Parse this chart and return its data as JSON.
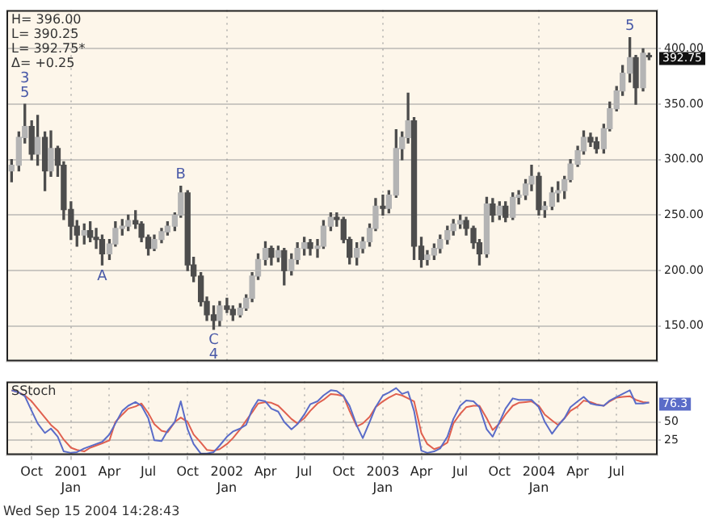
{
  "chart_data": [
    {
      "type": "candlestick",
      "color": "#4d4d4d",
      "colors": [
        "#b4b4b4",
        "#b4b4b4",
        "#b4b4b4",
        "#4d4d4d",
        "#b4b4b4",
        "#4d4d4d",
        "#b4b4b4",
        "#4d4d4d",
        "#4d4d4d",
        "#4d4d4d",
        "#4d4d4d",
        "#b4b4b4",
        "#4d4d4d",
        "#4d4d4d",
        "#4d4d4d",
        "#b4b4b4",
        "#b4b4b4",
        "#b4b4b4",
        "#b4b4b4",
        "#4d4d4d",
        "#4d4d4d",
        "#4d4d4d",
        "#b4b4b4",
        "#b4b4b4",
        "#b4b4b4",
        "#b4b4b4",
        "#b4b4b4",
        "#4d4d4d",
        "#4d4d4d",
        "#4d4d4d",
        "#4d4d4d",
        "#4d4d4d",
        "#b4b4b4",
        "#4d4d4d",
        "#4d4d4d",
        "#b4b4b4",
        "#b4b4b4",
        "#b4b4b4",
        "#b4b4b4",
        "#b4b4b4",
        "#4d4d4d",
        "#b4b4b4",
        "#4d4d4d",
        "#b4b4b4",
        "#b4b4b4",
        "#b4b4b4",
        "#4d4d4d",
        "#b4b4b4",
        "#b4b4b4",
        "#b4b4b4",
        "#4d4d4d",
        "#4d4d4d",
        "#4d4d4d",
        "#b4b4b4",
        "#b4b4b4",
        "#b4b4b4",
        "#b4b4b4",
        "#4d4d4d",
        "#b4b4b4",
        "#b4b4b4",
        "#b4b4b4",
        "#b4b4b4",
        "#4d4d4d",
        "#4d4d4d",
        "#b4b4b4",
        "#b4b4b4",
        "#b4b4b4",
        "#b4b4b4",
        "#b4b4b4",
        "#b4b4b4",
        "#4d4d4d",
        "#4d4d4d",
        "#4d4d4d",
        "#b4b4b4",
        "#4d4d4d",
        "#b4b4b4",
        "#4d4d4d",
        "#b4b4b4",
        "#b4b4b4",
        "#b4b4b4",
        "#b4b4b4",
        "#4d4d4d",
        "#b4b4b4",
        "#b4b4b4",
        "#b4b4b4",
        "#b4b4b4",
        "#b4b4b4",
        "#b4b4b4",
        "#b4b4b4",
        "#4d4d4d",
        "#4d4d4d",
        "#b4b4b4",
        "#b4b4b4",
        "#b4b4b4",
        "#b4b4b4",
        "#b4b4b4",
        "#4d4d4d",
        "#b4b4b4",
        "#4d4d4d"
      ],
      "x": [
        "2000-08-15",
        "2000-09-01",
        "2000-09-15",
        "2000-10-01",
        "2000-10-15",
        "2000-11-01",
        "2000-11-15",
        "2000-12-01",
        "2000-12-15",
        "2001-01-01",
        "2001-01-15",
        "2001-02-01",
        "2001-02-15",
        "2001-03-01",
        "2001-03-15",
        "2001-04-01",
        "2001-04-15",
        "2001-05-01",
        "2001-05-15",
        "2001-06-01",
        "2001-06-15",
        "2001-07-01",
        "2001-07-15",
        "2001-08-01",
        "2001-08-15",
        "2001-09-01",
        "2001-09-15",
        "2001-10-01",
        "2001-10-15",
        "2001-11-01",
        "2001-11-15",
        "2001-12-01",
        "2001-12-15",
        "2002-01-01",
        "2002-01-15",
        "2002-02-01",
        "2002-02-15",
        "2002-03-01",
        "2002-03-15",
        "2002-04-01",
        "2002-04-15",
        "2002-05-01",
        "2002-05-15",
        "2002-06-01",
        "2002-06-15",
        "2002-07-01",
        "2002-07-15",
        "2002-08-01",
        "2002-08-15",
        "2002-09-01",
        "2002-09-15",
        "2002-10-01",
        "2002-10-15",
        "2002-11-01",
        "2002-11-15",
        "2002-12-01",
        "2002-12-15",
        "2003-01-01",
        "2003-01-15",
        "2003-02-01",
        "2003-02-15",
        "2003-03-01",
        "2003-03-15",
        "2003-04-01",
        "2003-04-15",
        "2003-05-01",
        "2003-05-15",
        "2003-06-01",
        "2003-06-15",
        "2003-07-01",
        "2003-07-15",
        "2003-08-01",
        "2003-08-15",
        "2003-09-01",
        "2003-09-15",
        "2003-10-01",
        "2003-10-15",
        "2003-11-01",
        "2003-11-15",
        "2003-12-01",
        "2003-12-15",
        "2004-01-01",
        "2004-01-15",
        "2004-02-01",
        "2004-02-15",
        "2004-03-01",
        "2004-03-15",
        "2004-04-01",
        "2004-04-15",
        "2004-05-01",
        "2004-05-15",
        "2004-06-01",
        "2004-06-15",
        "2004-07-01",
        "2004-07-15",
        "2004-08-01",
        "2004-08-15",
        "2004-09-01",
        "2004-09-15"
      ],
      "ohlc": [
        [
          290,
          300,
          280,
          295
        ],
        [
          295,
          325,
          290,
          320
        ],
        [
          320,
          350,
          315,
          330
        ],
        [
          330,
          335,
          300,
          305
        ],
        [
          305,
          340,
          295,
          320
        ],
        [
          320,
          325,
          272,
          290
        ],
        [
          290,
          326,
          285,
          310
        ],
        [
          310,
          312,
          285,
          295
        ],
        [
          295,
          298,
          246,
          255
        ],
        [
          255,
          262,
          228,
          240
        ],
        [
          240,
          245,
          222,
          232
        ],
        [
          232,
          242,
          224,
          236
        ],
        [
          236,
          244,
          226,
          230
        ],
        [
          230,
          238,
          220,
          228
        ],
        [
          228,
          232,
          205,
          215
        ],
        [
          215,
          228,
          210,
          224
        ],
        [
          224,
          244,
          222,
          238
        ],
        [
          238,
          246,
          232,
          240
        ],
        [
          240,
          250,
          236,
          245
        ],
        [
          245,
          254,
          238,
          242
        ],
        [
          242,
          244,
          226,
          230
        ],
        [
          230,
          232,
          214,
          220
        ],
        [
          220,
          232,
          218,
          228
        ],
        [
          228,
          238,
          225,
          235
        ],
        [
          235,
          244,
          232,
          240
        ],
        [
          240,
          252,
          236,
          250
        ],
        [
          250,
          276,
          248,
          270
        ],
        [
          270,
          272,
          200,
          205
        ],
        [
          205,
          212,
          190,
          195
        ],
        [
          195,
          198,
          168,
          172
        ],
        [
          172,
          176,
          155,
          160
        ],
        [
          160,
          168,
          147,
          155
        ],
        [
          155,
          172,
          150,
          168
        ],
        [
          168,
          175,
          162,
          165
        ],
        [
          165,
          168,
          155,
          160
        ],
        [
          160,
          170,
          158,
          166
        ],
        [
          166,
          178,
          164,
          175
        ],
        [
          175,
          198,
          172,
          195
        ],
        [
          195,
          215,
          192,
          210
        ],
        [
          210,
          226,
          205,
          220
        ],
        [
          220,
          222,
          205,
          212
        ],
        [
          212,
          222,
          208,
          218
        ],
        [
          218,
          220,
          187,
          200
        ],
        [
          200,
          215,
          196,
          210
        ],
        [
          210,
          225,
          206,
          220
        ],
        [
          220,
          230,
          214,
          225
        ],
        [
          225,
          228,
          214,
          220
        ],
        [
          220,
          228,
          212,
          222
        ],
        [
          222,
          245,
          220,
          240
        ],
        [
          240,
          252,
          236,
          248
        ],
        [
          248,
          252,
          240,
          246
        ],
        [
          246,
          248,
          225,
          228
        ],
        [
          228,
          230,
          206,
          212
        ],
        [
          212,
          225,
          205,
          220
        ],
        [
          220,
          230,
          216,
          226
        ],
        [
          226,
          242,
          222,
          238
        ],
        [
          238,
          265,
          236,
          258
        ],
        [
          258,
          268,
          250,
          256
        ],
        [
          256,
          272,
          252,
          268
        ],
        [
          268,
          327,
          266,
          310
        ],
        [
          310,
          325,
          300,
          320
        ],
        [
          320,
          360,
          315,
          335
        ],
        [
          335,
          338,
          210,
          222
        ],
        [
          222,
          230,
          203,
          210
        ],
        [
          210,
          218,
          205,
          214
        ],
        [
          214,
          224,
          210,
          220
        ],
        [
          220,
          232,
          216,
          228
        ],
        [
          228,
          240,
          224,
          236
        ],
        [
          236,
          246,
          232,
          242
        ],
        [
          242,
          250,
          238,
          245
        ],
        [
          245,
          248,
          232,
          238
        ],
        [
          238,
          240,
          220,
          225
        ],
        [
          225,
          228,
          205,
          215
        ],
        [
          215,
          266,
          212,
          260
        ],
        [
          260,
          265,
          244,
          250
        ],
        [
          250,
          262,
          246,
          258
        ],
        [
          258,
          262,
          244,
          248
        ],
        [
          248,
          270,
          246,
          266
        ],
        [
          266,
          272,
          260,
          268
        ],
        [
          268,
          282,
          264,
          278
        ],
        [
          278,
          295,
          272,
          285
        ],
        [
          285,
          288,
          250,
          255
        ],
        [
          255,
          262,
          248,
          258
        ],
        [
          258,
          275,
          255,
          270
        ],
        [
          270,
          280,
          262,
          272
        ],
        [
          272,
          285,
          265,
          282
        ],
        [
          282,
          300,
          280,
          296
        ],
        [
          296,
          312,
          294,
          308
        ],
        [
          308,
          326,
          305,
          320
        ],
        [
          320,
          324,
          312,
          316
        ],
        [
          316,
          320,
          306,
          310
        ],
        [
          310,
          332,
          306,
          328
        ],
        [
          328,
          352,
          326,
          346
        ],
        [
          346,
          366,
          344,
          362
        ],
        [
          362,
          385,
          358,
          378
        ],
        [
          378,
          410,
          370,
          392
        ],
        [
          392,
          394,
          350,
          365
        ],
        [
          365,
          400,
          362,
          396
        ],
        [
          394,
          396,
          390.25,
          392.75
        ]
      ],
      "xlim": [
        "2000-08-03",
        "2004-10-05"
      ],
      "xticks": [
        {
          "value": "2001-01-01",
          "label": null
        },
        {
          "value": "2002-01-01",
          "label": null
        },
        {
          "value": "2003-01-01",
          "label": null
        },
        {
          "value": "2004-01-01",
          "label": null
        }
      ],
      "ylim": [
        118,
        435
      ],
      "yticks": [
        {
          "value": 150,
          "label": "150.00"
        },
        {
          "value": 200,
          "label": "200.00"
        },
        {
          "value": 250,
          "label": "250.00"
        },
        {
          "value": 300,
          "label": "300.00"
        },
        {
          "value": 350,
          "label": "350.00"
        },
        {
          "value": 400,
          "label": "400.00"
        }
      ],
      "grid": true,
      "tick_labels": "y",
      "annotations": [
        "H= 396.00",
        "L= 390.25",
        "L= 392.75*",
        "Δ= +0.25",
        {
          "text": "5",
          "x": "2000-09-15",
          "y": 350
        },
        {
          "text": "3",
          "x": "2000-09-15",
          "y": 350
        },
        {
          "text": "A",
          "x": "2001-03-15",
          "y": 205
        },
        {
          "text": "B",
          "x": "2001-09-15",
          "y": 276
        },
        {
          "text": "C",
          "x": "2001-12-01",
          "y": 147
        },
        {
          "text": "4",
          "x": "2001-12-01",
          "y": 147
        },
        {
          "text": "5",
          "x": "2004-08-01",
          "y": 410
        },
        {
          "text": "392.75",
          "x": "2004-09-15",
          "y": 392.75
        }
      ]
    },
    {
      "type": "line",
      "title": "SStoch",
      "x": [
        "2000-08-15",
        "2000-09-01",
        "2000-09-15",
        "2000-10-01",
        "2000-10-15",
        "2000-11-01",
        "2000-11-15",
        "2000-12-01",
        "2000-12-15",
        "2001-01-01",
        "2001-01-15",
        "2001-02-01",
        "2001-02-15",
        "2001-03-01",
        "2001-03-15",
        "2001-04-01",
        "2001-04-15",
        "2001-05-01",
        "2001-05-15",
        "2001-06-01",
        "2001-06-15",
        "2001-07-01",
        "2001-07-15",
        "2001-08-01",
        "2001-08-15",
        "2001-09-01",
        "2001-09-15",
        "2001-10-01",
        "2001-10-15",
        "2001-11-01",
        "2001-11-15",
        "2001-12-01",
        "2001-12-15",
        "2002-01-01",
        "2002-01-15",
        "2002-02-01",
        "2002-02-15",
        "2002-03-01",
        "2002-03-15",
        "2002-04-01",
        "2002-04-15",
        "2002-05-01",
        "2002-05-15",
        "2002-06-01",
        "2002-06-15",
        "2002-07-01",
        "2002-07-15",
        "2002-08-01",
        "2002-08-15",
        "2002-09-01",
        "2002-09-15",
        "2002-10-01",
        "2002-10-15",
        "2002-11-01",
        "2002-11-15",
        "2002-12-01",
        "2002-12-15",
        "2003-01-01",
        "2003-01-15",
        "2003-02-01",
        "2003-02-15",
        "2003-03-01",
        "2003-03-15",
        "2003-04-01",
        "2003-04-15",
        "2003-05-01",
        "2003-05-15",
        "2003-06-01",
        "2003-06-15",
        "2003-07-01",
        "2003-07-15",
        "2003-08-01",
        "2003-08-15",
        "2003-09-01",
        "2003-09-15",
        "2003-10-01",
        "2003-10-15",
        "2003-11-01",
        "2003-11-15",
        "2003-12-01",
        "2003-12-15",
        "2004-01-01",
        "2004-01-15",
        "2004-02-01",
        "2004-02-15",
        "2004-03-01",
        "2004-03-15",
        "2004-04-01",
        "2004-04-15",
        "2004-05-01",
        "2004-05-15",
        "2004-06-01",
        "2004-06-15",
        "2004-07-01",
        "2004-07-15",
        "2004-08-01",
        "2004-08-15",
        "2004-09-01",
        "2004-09-15"
      ],
      "series": [
        {
          "color": "#5a6cc8",
          "values": [
            93,
            90,
            85,
            65,
            48,
            35,
            41,
            30,
            10,
            8,
            9,
            14,
            17,
            20,
            23,
            33,
            48,
            65,
            72,
            77,
            72,
            55,
            25,
            24,
            38,
            50,
            78,
            40,
            20,
            7,
            7,
            9,
            18,
            30,
            37,
            41,
            46,
            67,
            80,
            78,
            68,
            64,
            50,
            40,
            47,
            60,
            74,
            78,
            86,
            93,
            92,
            85,
            72,
            45,
            28,
            50,
            70,
            86,
            90,
            96,
            88,
            91,
            65,
            11,
            8,
            10,
            14,
            30,
            54,
            72,
            79,
            78,
            70,
            40,
            30,
            50,
            68,
            82,
            80,
            80,
            80,
            70,
            50,
            34,
            45,
            55,
            70,
            78,
            84,
            75,
            73,
            72,
            79,
            84,
            88,
            93,
            75,
            75,
            76.3
          ]
        },
        {
          "color": "#e0604f",
          "values": [
            93,
            90,
            86,
            78,
            68,
            56,
            46,
            38,
            26,
            15,
            12,
            10,
            15,
            18,
            21,
            25,
            50,
            60,
            68,
            71,
            75,
            62,
            47,
            38,
            36,
            50,
            56,
            50,
            33,
            22,
            12,
            11,
            13,
            20,
            28,
            40,
            52,
            63,
            75,
            77,
            76,
            72,
            64,
            54,
            48,
            55,
            65,
            75,
            80,
            88,
            87,
            85,
            65,
            44,
            48,
            57,
            70,
            78,
            83,
            88,
            86,
            82,
            78,
            35,
            20,
            13,
            16,
            22,
            48,
            61,
            70,
            72,
            72,
            55,
            39,
            48,
            60,
            72,
            76,
            77,
            78,
            72,
            60,
            52,
            46,
            55,
            65,
            71,
            79,
            77,
            74,
            72,
            78,
            83,
            84,
            85,
            80,
            77,
            76
          ]
        }
      ],
      "xlim": [
        "2000-08-03",
        "2004-10-05"
      ],
      "xticks": [
        {
          "value": "2000-10-01",
          "label": "Oct"
        },
        {
          "value": "2001-01-01",
          "label": "2001\nJan"
        },
        {
          "value": "2001-04-01",
          "label": "Apr"
        },
        {
          "value": "2001-07-01",
          "label": "Jul"
        },
        {
          "value": "2001-10-01",
          "label": "Oct"
        },
        {
          "value": "2002-01-01",
          "label": "2002\nJan"
        },
        {
          "value": "2002-04-01",
          "label": "Apr"
        },
        {
          "value": "2002-07-01",
          "label": "Jul"
        },
        {
          "value": "2002-10-01",
          "label": "Oct"
        },
        {
          "value": "2003-01-01",
          "label": "2003\nJan"
        },
        {
          "value": "2003-04-01",
          "label": "Apr"
        },
        {
          "value": "2003-07-01",
          "label": "Jul"
        },
        {
          "value": "2003-10-01",
          "label": "Oct"
        },
        {
          "value": "2004-01-01",
          "label": "2004\nJan"
        },
        {
          "value": "2004-04-01",
          "label": "Apr"
        },
        {
          "value": "2004-07-01",
          "label": "Jul"
        }
      ],
      "ylim": [
        5,
        105
      ],
      "yticks": [
        25,
        50
      ],
      "grid": true,
      "annotations": [
        {
          "text": "76.3",
          "x": "2004-09-15",
          "y": 76.3
        },
        "Wed Sep 15 2004 14:28:43"
      ]
    }
  ]
}
